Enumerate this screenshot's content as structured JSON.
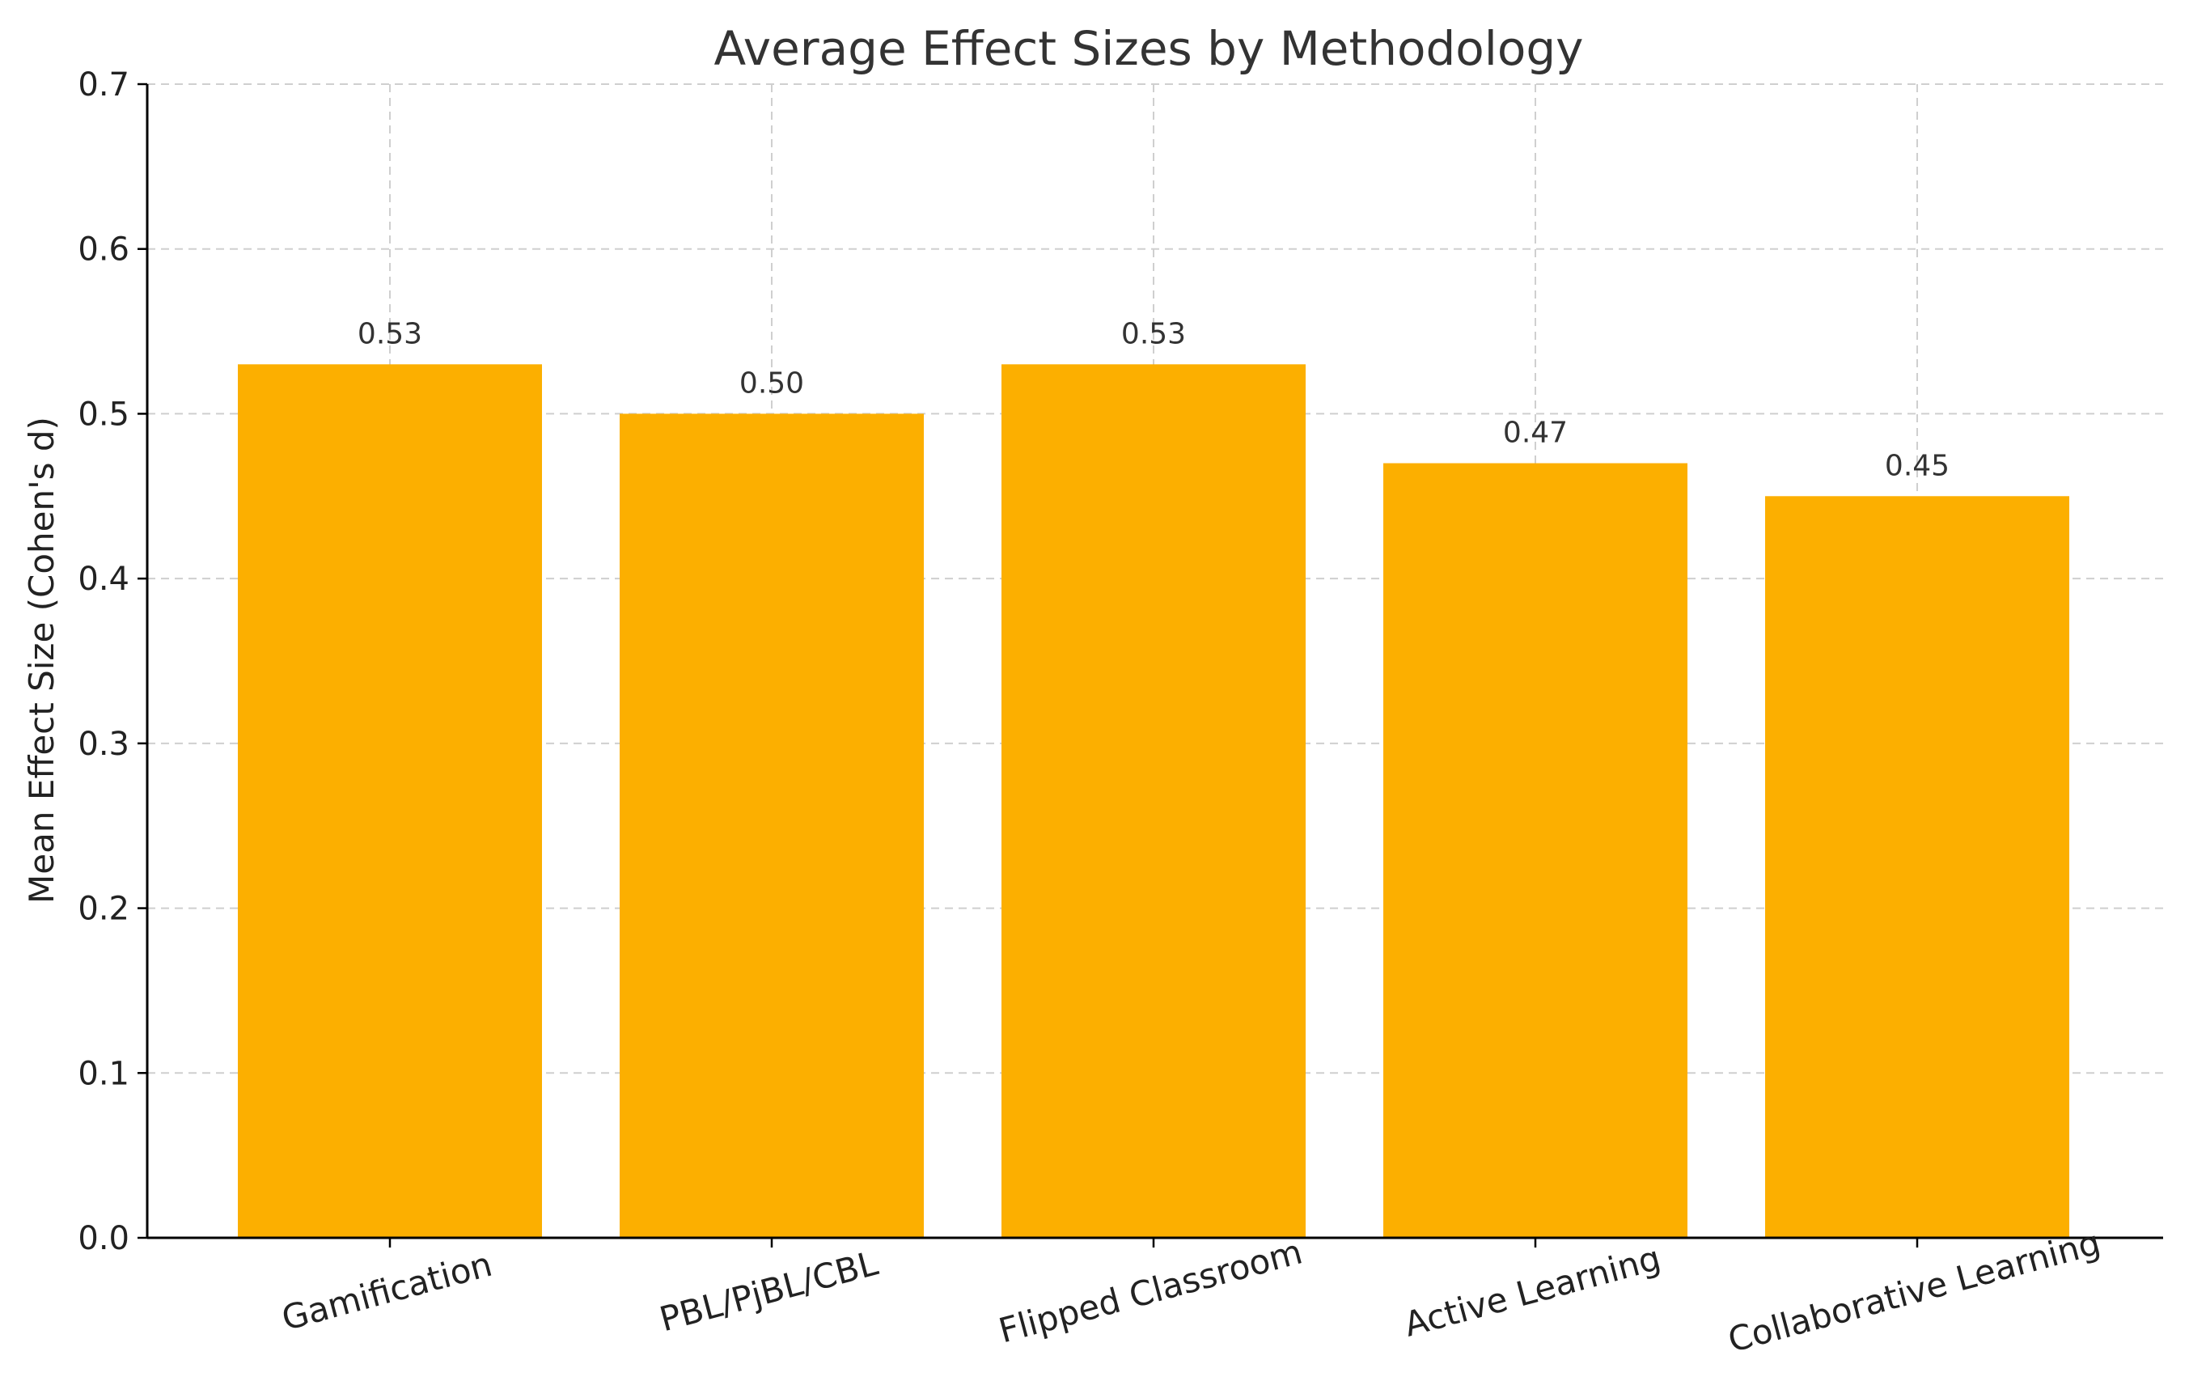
{
  "chart_data": {
    "type": "bar",
    "title": "Average Effect Sizes by Methodology",
    "xlabel": "",
    "ylabel": "Mean Effect Size (Cohen's d)",
    "categories": [
      "Gamification",
      "PBL/PjBL/CBL",
      "Flipped Classroom",
      "Active Learning",
      "Collaborative Learning"
    ],
    "values": [
      0.53,
      0.5,
      0.53,
      0.47,
      0.45
    ],
    "value_labels": [
      "0.53",
      "0.50",
      "0.53",
      "0.47",
      "0.45"
    ],
    "ylim": [
      0,
      0.7
    ],
    "yticks": [
      0.0,
      0.1,
      0.2,
      0.3,
      0.4,
      0.5,
      0.6,
      0.7
    ],
    "ytick_labels": [
      "0.0",
      "0.1",
      "0.2",
      "0.3",
      "0.4",
      "0.5",
      "0.6",
      "0.7"
    ],
    "grid": true,
    "bar_color": "#FCAF00"
  }
}
